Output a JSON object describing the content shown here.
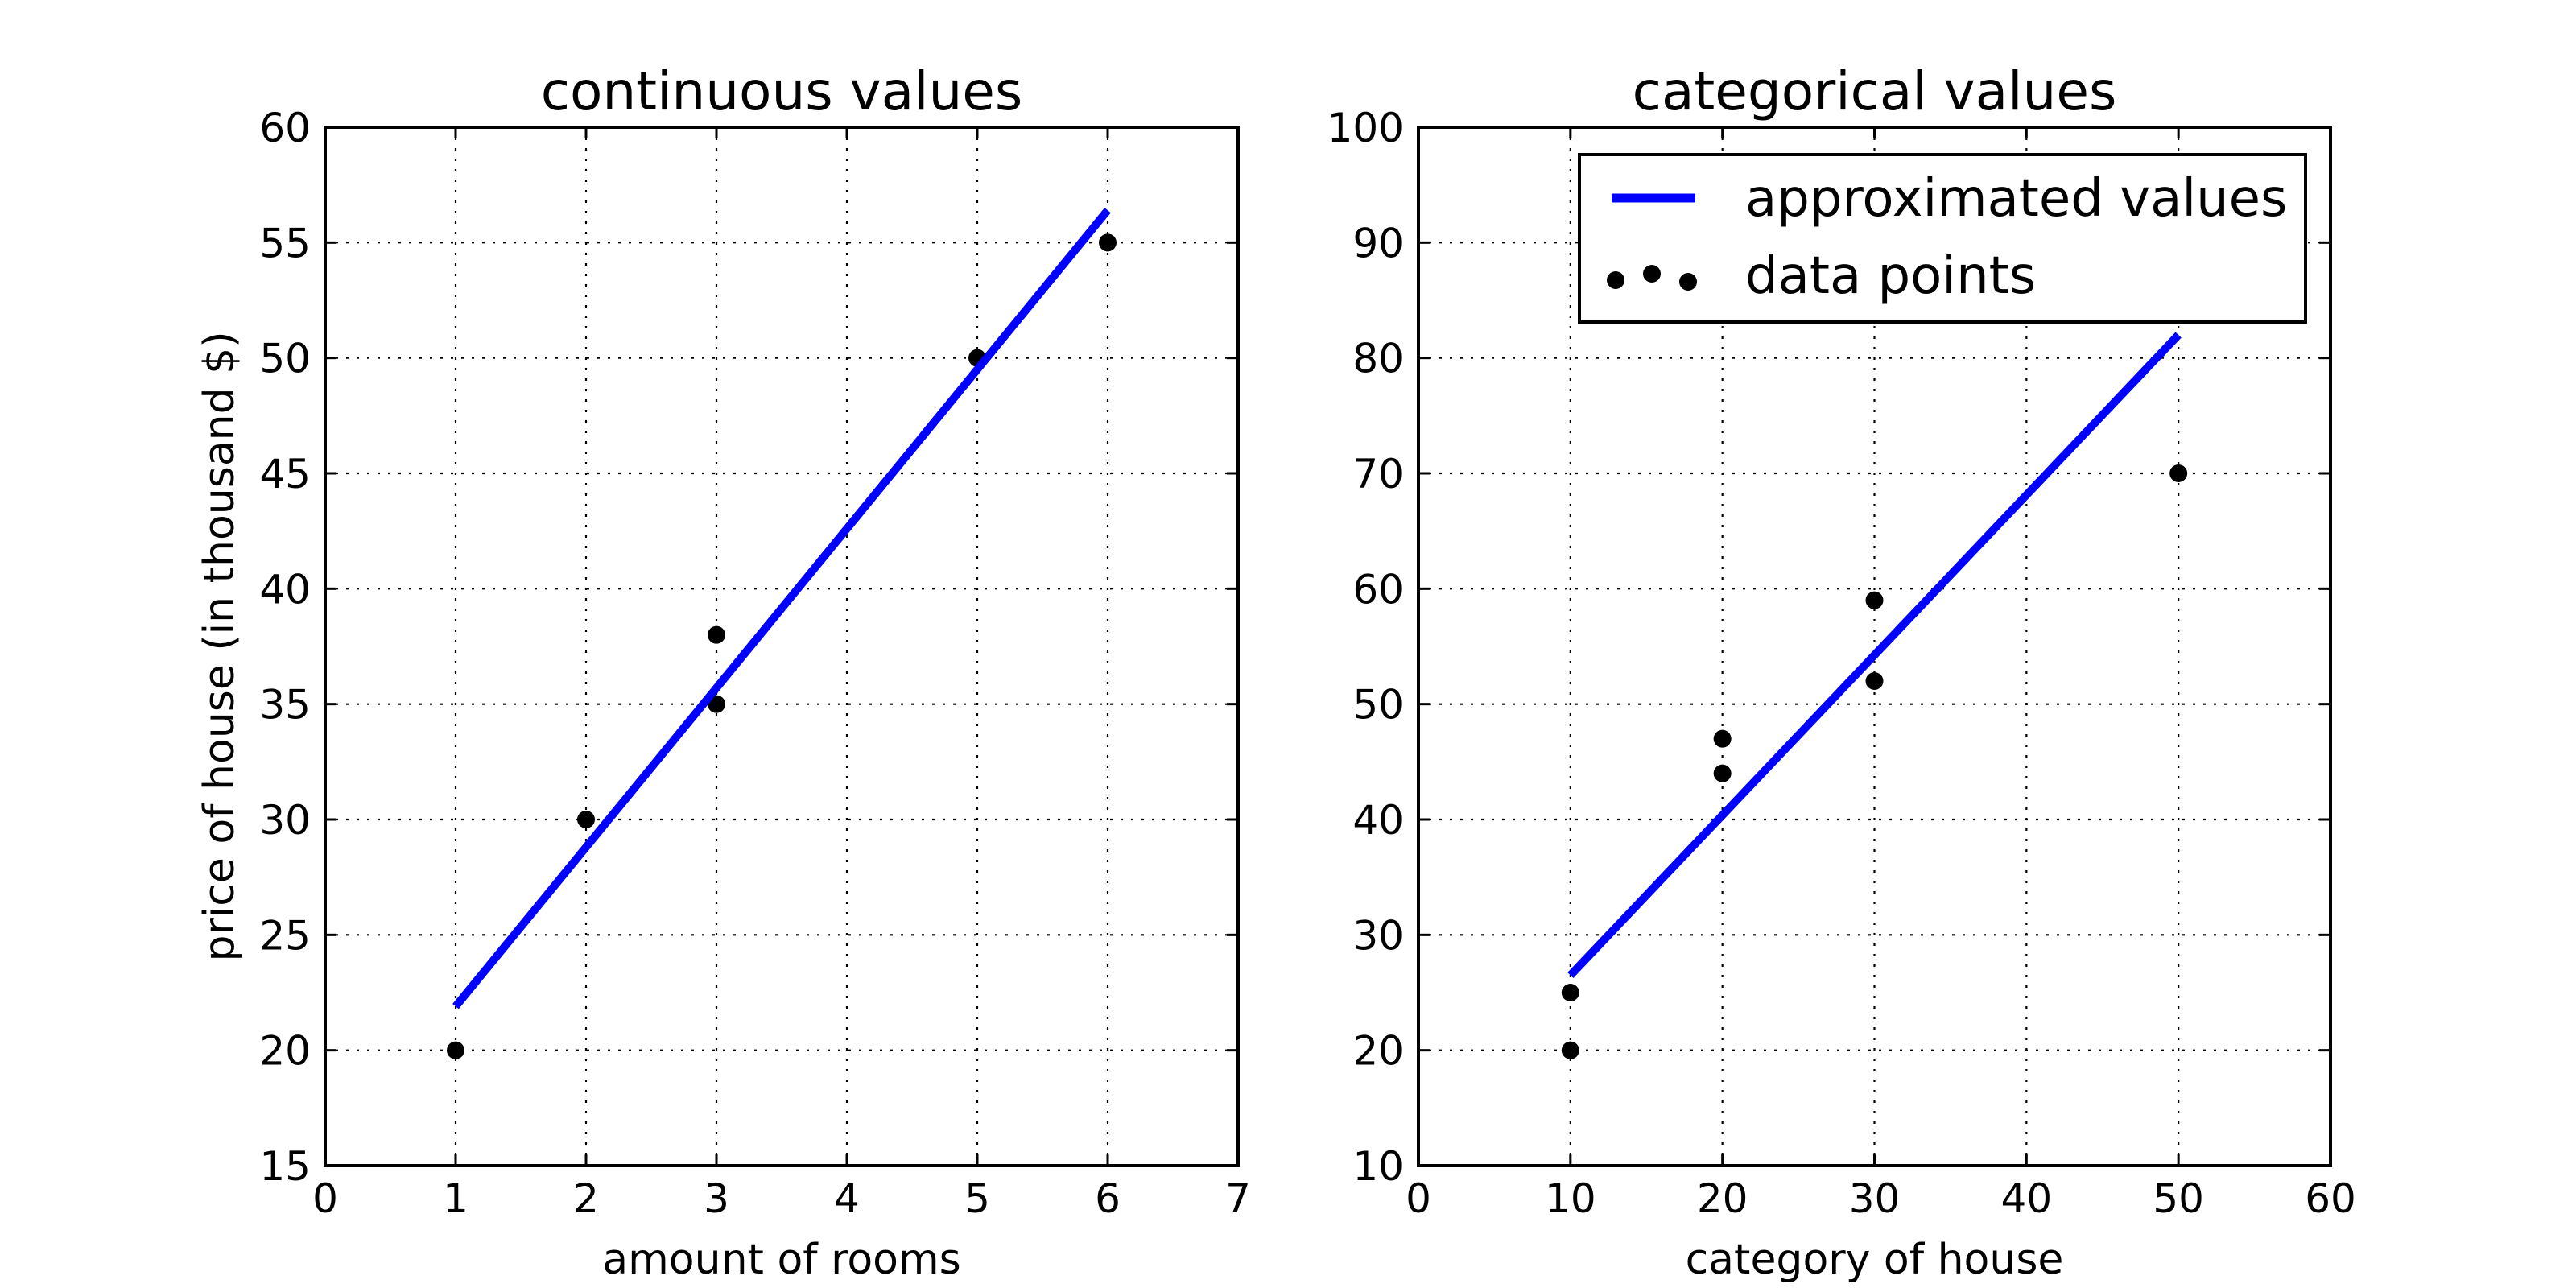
{
  "chart_data": [
    {
      "type": "scatter",
      "title": "continuous values",
      "xlabel": "amount of rooms",
      "ylabel": "price of house (in thousand $)",
      "xlim": [
        0,
        7
      ],
      "ylim": [
        15,
        60
      ],
      "xticks": [
        0,
        1,
        2,
        3,
        4,
        5,
        6,
        7
      ],
      "yticks": [
        15,
        20,
        25,
        30,
        35,
        40,
        45,
        50,
        55,
        60
      ],
      "grid": true,
      "series": [
        {
          "name": "data points",
          "kind": "scatter",
          "color": "#000000",
          "points": [
            [
              1,
              20
            ],
            [
              2,
              30
            ],
            [
              3,
              38
            ],
            [
              3,
              35
            ],
            [
              5,
              50
            ],
            [
              6,
              55
            ]
          ]
        },
        {
          "name": "approximated values",
          "kind": "line",
          "color": "#0000ff",
          "points": [
            [
              1,
              21.9
            ],
            [
              6,
              56.4
            ]
          ]
        }
      ]
    },
    {
      "type": "scatter",
      "title": "categorical values",
      "xlabel": "category of house",
      "ylabel": "",
      "xlim": [
        0,
        60
      ],
      "ylim": [
        10,
        100
      ],
      "xticks": [
        0,
        10,
        20,
        30,
        40,
        50,
        60
      ],
      "yticks": [
        10,
        20,
        30,
        40,
        50,
        60,
        70,
        80,
        90,
        100
      ],
      "grid": true,
      "legend": {
        "placement": "top-right",
        "entries": [
          "approximated values",
          "data points"
        ]
      },
      "series": [
        {
          "name": "data points",
          "kind": "scatter",
          "color": "#000000",
          "points": [
            [
              10,
              20
            ],
            [
              10,
              25
            ],
            [
              20,
              44
            ],
            [
              20,
              47
            ],
            [
              30,
              52
            ],
            [
              30,
              59
            ],
            [
              50,
              70
            ]
          ]
        },
        {
          "name": "approximated values",
          "kind": "line",
          "color": "#0000ff",
          "points": [
            [
              10,
              26.5
            ],
            [
              50,
              82
            ]
          ]
        }
      ]
    }
  ]
}
